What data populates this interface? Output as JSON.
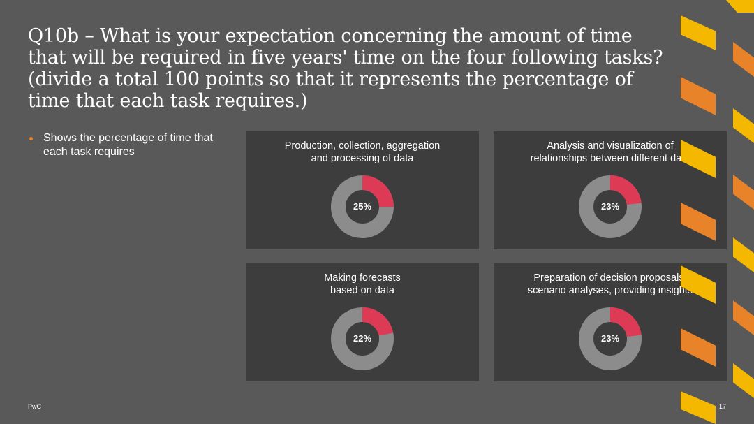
{
  "slide": {
    "title": "Q10b – What is your expectation concerning the amount of time that will be required in five years' time on the four following tasks? (divide a total 100 points so that it represents the percentage of time that each task requires.)",
    "bullets": [
      "Shows the percentage of time that each task requires"
    ],
    "footer_left": "PwC",
    "page_number": "17"
  },
  "colors": {
    "background": "#595959",
    "panel": "#3d3d3d",
    "highlight": "#dc3a55",
    "remainder": "#8c8c8c",
    "accent_orange": "#e8832a",
    "accent_yellow": "#f5b800"
  },
  "chart_data": [
    {
      "type": "pie",
      "title": "Production, collection, aggregation\nand processing of data",
      "value": 25,
      "label": "25%"
    },
    {
      "type": "pie",
      "title": "Analysis and visualization of\nrelationships between different data",
      "value": 23,
      "label": "23%"
    },
    {
      "type": "pie",
      "title": "Making forecasts\nbased on data",
      "value": 22,
      "label": "22%"
    },
    {
      "type": "pie",
      "title": "Preparation of decision proposals,\nscenario analyses, providing insights",
      "value": 23,
      "label": "23%"
    }
  ]
}
